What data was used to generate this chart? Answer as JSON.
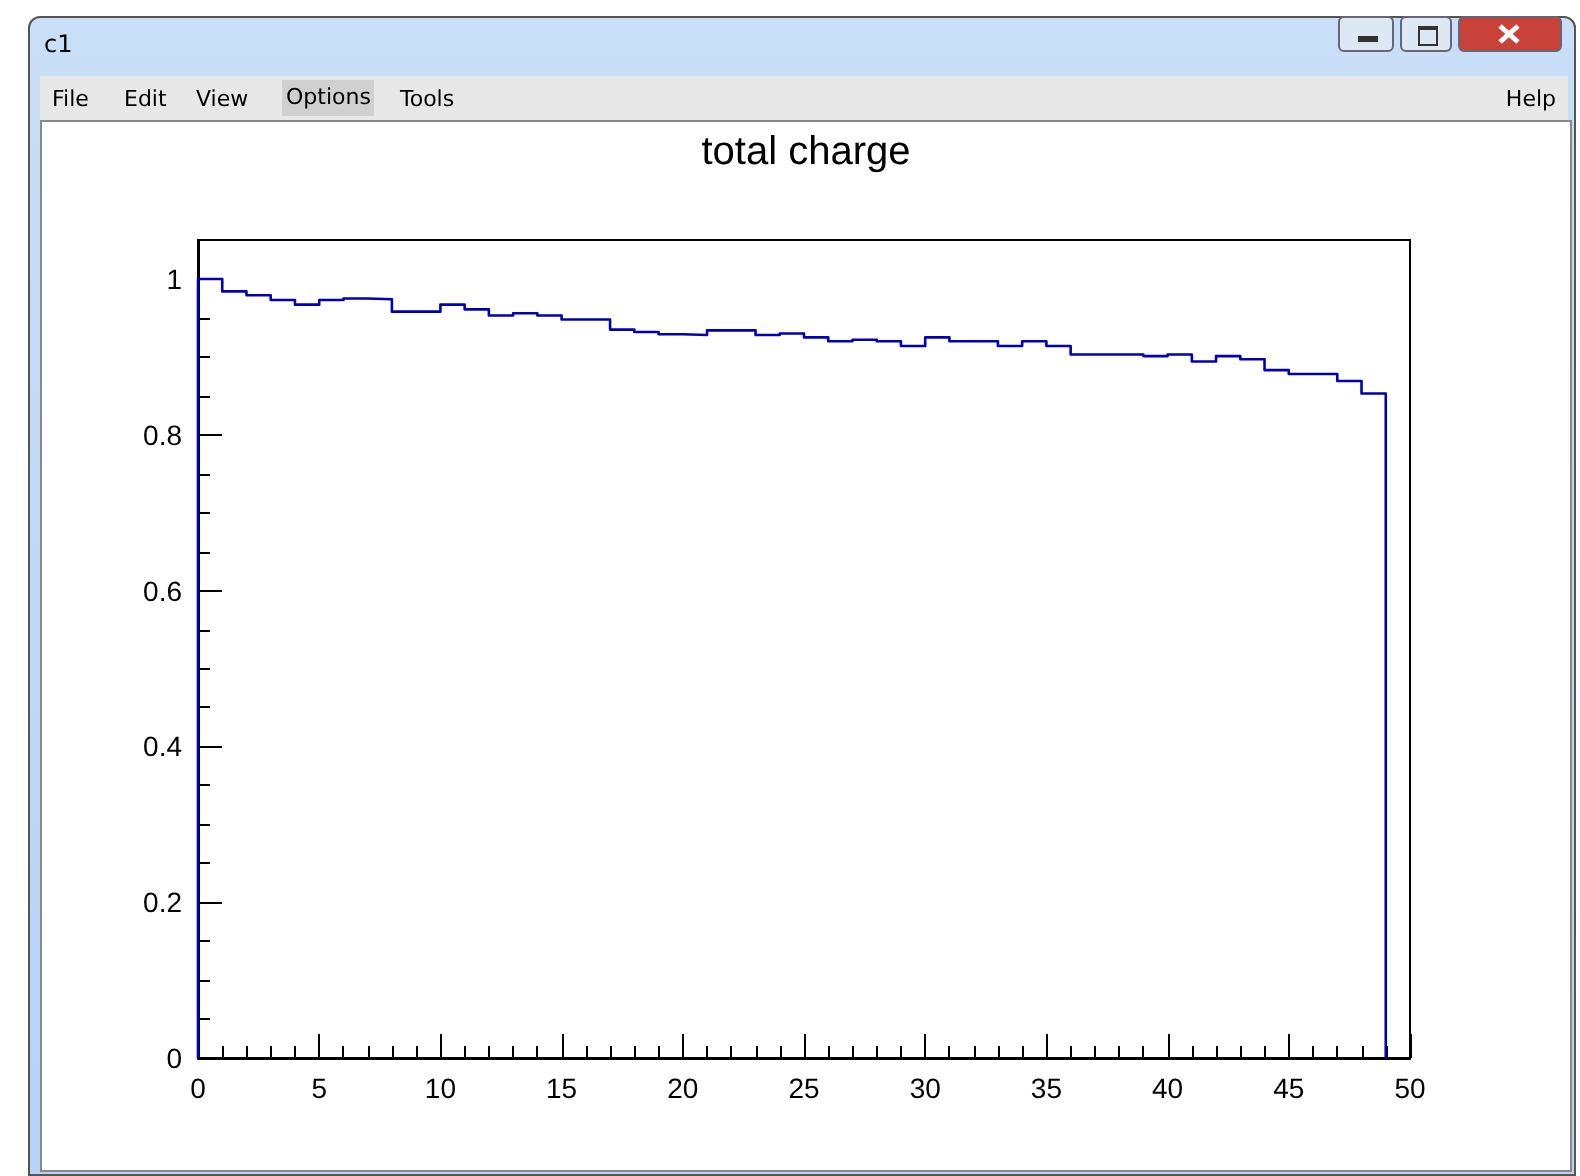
{
  "chart_data": {
    "type": "histogram",
    "title": "total charge",
    "bins": [
      0,
      1,
      2,
      3,
      4,
      5,
      6,
      7,
      8,
      9,
      10,
      11,
      12,
      13,
      14,
      15,
      16,
      17,
      18,
      19,
      20,
      21,
      22,
      23,
      24,
      25,
      26,
      27,
      28,
      29,
      30,
      31,
      32,
      33,
      34,
      35,
      36,
      37,
      38,
      39,
      40,
      41,
      42,
      43,
      44,
      45,
      46,
      47,
      48,
      49
    ],
    "values": [
      1.0,
      0.984,
      0.979,
      0.973,
      0.967,
      0.973,
      0.975,
      0.974,
      0.958,
      0.958,
      0.967,
      0.961,
      0.953,
      0.956,
      0.953,
      0.948,
      0.948,
      0.935,
      0.932,
      0.929,
      0.928,
      0.934,
      0.934,
      0.928,
      0.93,
      0.925,
      0.92,
      0.922,
      0.92,
      0.914,
      0.925,
      0.92,
      0.92,
      0.914,
      0.92,
      0.914,
      0.903,
      0.903,
      0.903,
      0.901,
      0.903,
      0.894,
      0.901,
      0.897,
      0.883,
      0.878,
      0.878,
      0.869,
      0.853
    ],
    "color": "#0000b4",
    "xlim": [
      0,
      50
    ],
    "ylim": [
      0,
      1.05
    ],
    "xticks": [
      0,
      {
        "value": 1,
        "label": null
      },
      {
        "value": 2,
        "label": null
      },
      {
        "value": 3,
        "label": null
      },
      {
        "value": 4,
        "label": null
      },
      5,
      {
        "value": 6,
        "label": null
      },
      {
        "value": 7,
        "label": null
      },
      {
        "value": 8,
        "label": null
      },
      {
        "value": 9,
        "label": null
      },
      10,
      {
        "value": 11,
        "label": null
      },
      {
        "value": 12,
        "label": null
      },
      {
        "value": 13,
        "label": null
      },
      {
        "value": 14,
        "label": null
      },
      15,
      {
        "value": 16,
        "label": null
      },
      {
        "value": 17,
        "label": null
      },
      {
        "value": 18,
        "label": null
      },
      {
        "value": 19,
        "label": null
      },
      20,
      {
        "value": 21,
        "label": null
      },
      {
        "value": 22,
        "label": null
      },
      {
        "value": 23,
        "label": null
      },
      {
        "value": 24,
        "label": null
      },
      25,
      {
        "value": 26,
        "label": null
      },
      {
        "value": 27,
        "label": null
      },
      {
        "value": 28,
        "label": null
      },
      {
        "value": 29,
        "label": null
      },
      30,
      {
        "value": 31,
        "label": null
      },
      {
        "value": 32,
        "label": null
      },
      {
        "value": 33,
        "label": null
      },
      {
        "value": 34,
        "label": null
      },
      35,
      {
        "value": 36,
        "label": null
      },
      {
        "value": 37,
        "label": null
      },
      {
        "value": 38,
        "label": null
      },
      {
        "value": 39,
        "label": null
      },
      40,
      {
        "value": 41,
        "label": null
      },
      {
        "value": 42,
        "label": null
      },
      {
        "value": 43,
        "label": null
      },
      {
        "value": 44,
        "label": null
      },
      45,
      {
        "value": 46,
        "label": null
      },
      {
        "value": 47,
        "label": null
      },
      {
        "value": 48,
        "label": null
      },
      {
        "value": 49,
        "label": null
      },
      50
    ],
    "yticks": [
      0,
      {
        "value": 0.05,
        "label": null
      },
      {
        "value": 0.1,
        "label": null
      },
      {
        "value": 0.15,
        "label": null
      },
      0.2,
      {
        "value": 0.25,
        "label": null
      },
      {
        "value": 0.3,
        "label": null
      },
      {
        "value": 0.35,
        "label": null
      },
      0.4,
      {
        "value": 0.45,
        "label": null
      },
      {
        "value": 0.5,
        "label": null
      },
      {
        "value": 0.55,
        "label": null
      },
      0.6,
      {
        "value": 0.65,
        "label": null
      },
      {
        "value": 0.7,
        "label": null
      },
      {
        "value": 0.75,
        "label": null
      },
      0.8,
      {
        "value": 0.85,
        "label": null
      },
      {
        "value": 0.9,
        "label": null
      },
      {
        "value": 0.95,
        "label": null
      },
      1
    ],
    "annotations": [
      "c1",
      "File",
      "Edit",
      "View",
      "Options",
      "Tools",
      "Help"
    ]
  }
}
